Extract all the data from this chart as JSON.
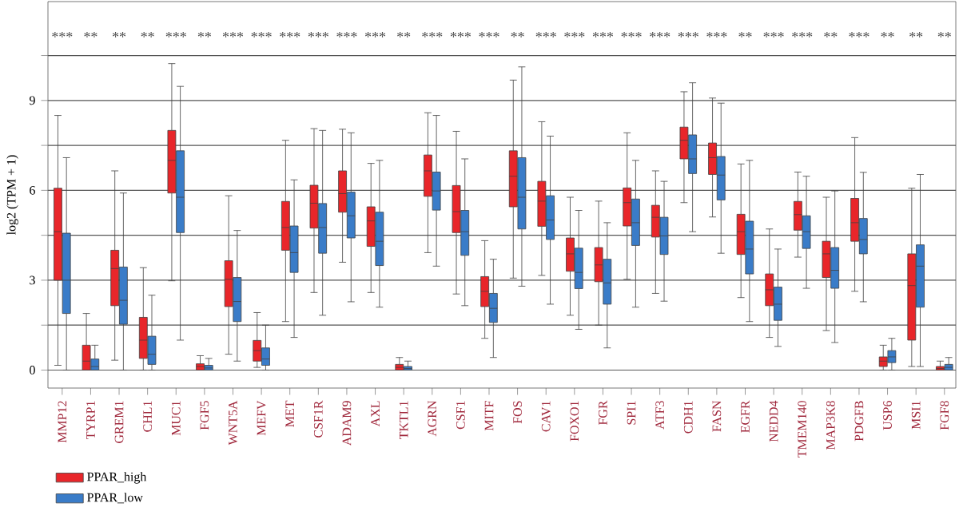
{
  "chart_data": {
    "type": "box",
    "ylabel": "log2 (TPM + 1)",
    "categories": [
      "MMP12",
      "TYRP1",
      "GREM1",
      "CHL1",
      "MUC1",
      "FGF5",
      "WNT5A",
      "MEFV",
      "MET",
      "CSF1R",
      "ADAM9",
      "AXL",
      "TKTL1",
      "AGRN",
      "CSF1",
      "MITF",
      "FOS",
      "CAV1",
      "FOXO1",
      "FGR",
      "SPI1",
      "ATF3",
      "CDH1",
      "FASN",
      "EGFR",
      "NEDD4",
      "TMEM140",
      "MAP3K8",
      "PDGFB",
      "USP6",
      "MSI1",
      "FGF8"
    ],
    "ylim": [
      -0.6,
      12.3
    ],
    "yticks": [
      0,
      {
        "value": 1.5,
        "label": null
      },
      3,
      {
        "value": 4.5,
        "label": null
      },
      6,
      {
        "value": 7.5,
        "label": null
      },
      9,
      {
        "value": 10.5,
        "label": null
      }
    ],
    "grid": "y",
    "legend": "bottom left",
    "series": [
      {
        "name": "PPAR_high",
        "color": "#e8262a",
        "boxes": [
          {
            "low": 0.16,
            "q1": 3.0,
            "median": 4.62,
            "q3": 6.07,
            "high": 8.5
          },
          {
            "low": 0,
            "q1": 0,
            "median": 0.3,
            "q3": 0.83,
            "high": 1.89
          },
          {
            "low": 0.33,
            "q1": 2.15,
            "median": 3.39,
            "q3": 4.0,
            "high": 6.65
          },
          {
            "low": 0,
            "q1": 0.39,
            "median": 1.0,
            "q3": 1.76,
            "high": 3.42
          },
          {
            "low": 2.98,
            "q1": 5.91,
            "median": 7.0,
            "q3": 8.0,
            "high": 10.23
          },
          {
            "low": 0,
            "q1": 0,
            "median": 0.12,
            "q3": 0.21,
            "high": 0.48
          },
          {
            "low": 0.53,
            "q1": 2.12,
            "median": 3.03,
            "q3": 3.65,
            "high": 5.82
          },
          {
            "low": 0.09,
            "q1": 0.3,
            "median": 0.65,
            "q3": 0.99,
            "high": 1.92
          },
          {
            "low": 1.62,
            "q1": 4.0,
            "median": 4.76,
            "q3": 5.63,
            "high": 7.67
          },
          {
            "low": 2.59,
            "q1": 4.74,
            "median": 5.57,
            "q3": 6.17,
            "high": 8.06
          },
          {
            "low": 3.6,
            "q1": 5.27,
            "median": 5.89,
            "q3": 6.65,
            "high": 8.04
          },
          {
            "low": 2.59,
            "q1": 4.13,
            "median": 4.98,
            "q3": 5.45,
            "high": 6.9
          },
          {
            "low": 0,
            "q1": 0,
            "median": 0.09,
            "q3": 0.19,
            "high": 0.42
          },
          {
            "low": 3.92,
            "q1": 5.8,
            "median": 6.65,
            "q3": 7.18,
            "high": 8.59
          },
          {
            "low": 2.54,
            "q1": 4.59,
            "median": 5.29,
            "q3": 6.16,
            "high": 7.97
          },
          {
            "low": 1.06,
            "q1": 2.12,
            "median": 2.63,
            "q3": 3.12,
            "high": 4.32
          },
          {
            "low": 3.07,
            "q1": 5.45,
            "median": 6.47,
            "q3": 7.32,
            "high": 9.68
          },
          {
            "low": 3.16,
            "q1": 4.8,
            "median": 5.64,
            "q3": 6.3,
            "high": 8.29
          },
          {
            "low": 1.83,
            "q1": 3.3,
            "median": 3.88,
            "q3": 4.41,
            "high": 5.77
          },
          {
            "low": 1.5,
            "q1": 2.95,
            "median": 3.51,
            "q3": 4.09,
            "high": 5.64
          },
          {
            "low": 3.03,
            "q1": 4.81,
            "median": 5.59,
            "q3": 6.08,
            "high": 7.92
          },
          {
            "low": 2.56,
            "q1": 4.44,
            "median": 5.1,
            "q3": 5.5,
            "high": 6.65
          },
          {
            "low": 5.59,
            "q1": 7.05,
            "median": 7.67,
            "q3": 8.11,
            "high": 9.29
          },
          {
            "low": 5.11,
            "q1": 6.53,
            "median": 7.09,
            "q3": 7.58,
            "high": 9.08
          },
          {
            "low": 2.42,
            "q1": 3.86,
            "median": 4.62,
            "q3": 5.2,
            "high": 6.88
          },
          {
            "low": 1.09,
            "q1": 2.15,
            "median": 2.68,
            "q3": 3.21,
            "high": 4.71
          },
          {
            "low": 3.77,
            "q1": 4.67,
            "median": 5.19,
            "q3": 5.63,
            "high": 6.61
          },
          {
            "low": 1.32,
            "q1": 3.09,
            "median": 3.88,
            "q3": 4.3,
            "high": 5.77
          },
          {
            "low": 2.63,
            "q1": 4.3,
            "median": 4.92,
            "q3": 5.73,
            "high": 7.76
          },
          {
            "low": 0,
            "q1": 0.12,
            "median": 0.3,
            "q3": 0.44,
            "high": 0.83
          },
          {
            "low": 0.12,
            "q1": 1.0,
            "median": 2.82,
            "q3": 3.88,
            "high": 6.07
          },
          {
            "low": 0,
            "q1": 0,
            "median": 0.05,
            "q3": 0.12,
            "high": 0.3
          }
        ]
      },
      {
        "name": "PPAR_low",
        "color": "#3a7cc8",
        "boxes": [
          {
            "low": 0,
            "q1": 1.89,
            "median": 3.0,
            "q3": 4.57,
            "high": 7.09
          },
          {
            "low": 0,
            "q1": 0,
            "median": 0.12,
            "q3": 0.37,
            "high": 0.83
          },
          {
            "low": 0,
            "q1": 1.53,
            "median": 2.33,
            "q3": 3.44,
            "high": 5.91
          },
          {
            "low": 0,
            "q1": 0.19,
            "median": 0.53,
            "q3": 1.13,
            "high": 2.5
          },
          {
            "low": 1.0,
            "q1": 4.59,
            "median": 5.77,
            "q3": 7.32,
            "high": 9.47
          },
          {
            "low": 0,
            "q1": 0,
            "median": 0.07,
            "q3": 0.16,
            "high": 0.39
          },
          {
            "low": 0.3,
            "q1": 1.62,
            "median": 2.29,
            "q3": 3.09,
            "high": 4.66
          },
          {
            "low": 0,
            "q1": 0.16,
            "median": 0.37,
            "q3": 0.74,
            "high": 1.5
          },
          {
            "low": 1.09,
            "q1": 3.26,
            "median": 3.92,
            "q3": 4.81,
            "high": 6.35
          },
          {
            "low": 1.83,
            "q1": 3.9,
            "median": 4.76,
            "q3": 5.56,
            "high": 8.0
          },
          {
            "low": 2.28,
            "q1": 4.41,
            "median": 5.15,
            "q3": 5.94,
            "high": 7.92
          },
          {
            "low": 2.1,
            "q1": 3.49,
            "median": 4.3,
            "q3": 5.27,
            "high": 7.0
          },
          {
            "low": 0,
            "q1": 0,
            "median": 0.05,
            "q3": 0.12,
            "high": 0.3
          },
          {
            "low": 3.47,
            "q1": 5.34,
            "median": 5.98,
            "q3": 6.61,
            "high": 8.5
          },
          {
            "low": 2.15,
            "q1": 3.83,
            "median": 4.62,
            "q3": 5.33,
            "high": 7.05
          },
          {
            "low": 0.42,
            "q1": 1.59,
            "median": 2.06,
            "q3": 2.56,
            "high": 3.7
          },
          {
            "low": 2.8,
            "q1": 4.71,
            "median": 5.77,
            "q3": 7.09,
            "high": 10.12
          },
          {
            "low": 2.2,
            "q1": 4.36,
            "median": 5.01,
            "q3": 5.82,
            "high": 7.81
          },
          {
            "low": 1.36,
            "q1": 2.72,
            "median": 3.26,
            "q3": 4.07,
            "high": 5.33
          },
          {
            "low": 0.74,
            "q1": 2.2,
            "median": 2.91,
            "q3": 3.7,
            "high": 4.92
          },
          {
            "low": 2.1,
            "q1": 4.16,
            "median": 4.92,
            "q3": 5.71,
            "high": 7.0
          },
          {
            "low": 2.3,
            "q1": 3.86,
            "median": 4.48,
            "q3": 5.1,
            "high": 6.3
          },
          {
            "low": 4.62,
            "q1": 6.56,
            "median": 7.05,
            "q3": 7.85,
            "high": 9.59
          },
          {
            "low": 3.9,
            "q1": 5.68,
            "median": 6.51,
            "q3": 7.13,
            "high": 8.91
          },
          {
            "low": 1.62,
            "q1": 3.21,
            "median": 4.04,
            "q3": 4.97,
            "high": 7.0
          },
          {
            "low": 0.79,
            "q1": 1.66,
            "median": 2.2,
            "q3": 2.77,
            "high": 4.04
          },
          {
            "low": 2.73,
            "q1": 4.06,
            "median": 4.62,
            "q3": 5.15,
            "high": 6.47
          },
          {
            "low": 0.92,
            "q1": 2.73,
            "median": 3.33,
            "q3": 4.09,
            "high": 5.98
          },
          {
            "low": 2.28,
            "q1": 3.88,
            "median": 4.36,
            "q3": 5.06,
            "high": 6.6
          },
          {
            "low": 0,
            "q1": 0.25,
            "median": 0.44,
            "q3": 0.65,
            "high": 1.06
          },
          {
            "low": 0.12,
            "q1": 2.1,
            "median": 3.47,
            "q3": 4.18,
            "high": 6.53
          },
          {
            "low": 0,
            "q1": 0,
            "median": 0.09,
            "q3": 0.19,
            "high": 0.42
          }
        ]
      }
    ],
    "annotations": [
      "***",
      "**",
      "**",
      "**",
      "***",
      "**",
      "***",
      "***",
      "***",
      "***",
      "***",
      "***",
      "**",
      "***",
      "***",
      "***",
      "**",
      "***",
      "***",
      "***",
      "***",
      "***",
      "***",
      "***",
      "**",
      "***",
      "***",
      "**",
      "***",
      "**",
      "**",
      "**"
    ]
  }
}
